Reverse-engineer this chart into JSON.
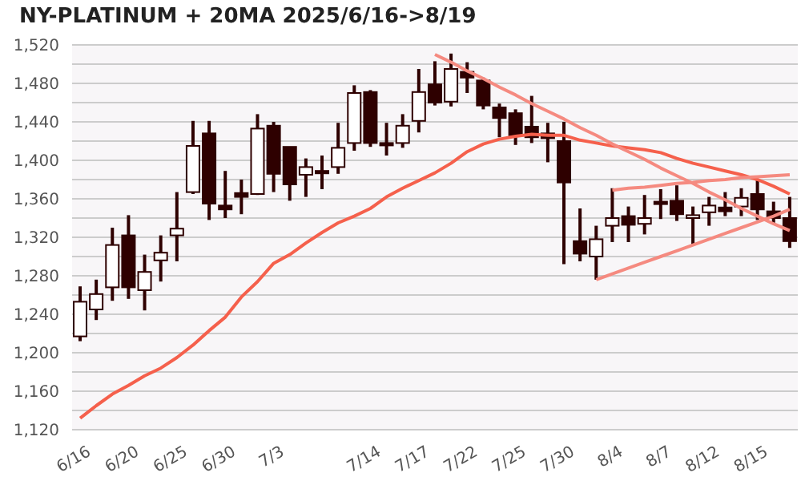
{
  "chart_data": {
    "type": "candlestick",
    "title": "NY-PLATINUM + 20MA 2025/6/16->8/19",
    "categories": [
      "6/16",
      null,
      null,
      "6/20",
      null,
      null,
      "6/25",
      null,
      null,
      "6/30",
      null,
      null,
      "7/3",
      null,
      null,
      null,
      null,
      null,
      "7/14",
      null,
      null,
      "7/17",
      null,
      null,
      "7/22",
      null,
      null,
      "7/25",
      null,
      null,
      "7/30",
      null,
      null,
      "8/4",
      null,
      null,
      "8/7",
      null,
      null,
      "8/12",
      null,
      null,
      "8/15",
      null,
      null
    ],
    "ohlc": [
      [
        1217,
        1269,
        1212,
        1253
      ],
      [
        1245,
        1276,
        1234,
        1261
      ],
      [
        1268,
        1330,
        1254,
        1312
      ],
      [
        1322,
        1343,
        1256,
        1268
      ],
      [
        1265,
        1302,
        1244,
        1284
      ],
      [
        1296,
        1322,
        1274,
        1304
      ],
      [
        1322,
        1367,
        1295,
        1329
      ],
      [
        1367,
        1441,
        1365,
        1415
      ],
      [
        1428,
        1441,
        1338,
        1355
      ],
      [
        1353,
        1389,
        1340,
        1349
      ],
      [
        1366,
        1380,
        1344,
        1362
      ],
      [
        1365,
        1448,
        1364,
        1433
      ],
      [
        1436,
        1440,
        1367,
        1386
      ],
      [
        1414,
        1414,
        1358,
        1375
      ],
      [
        1385,
        1402,
        1362,
        1393
      ],
      [
        1389,
        1405,
        1370,
        1388
      ],
      [
        1393,
        1439,
        1386,
        1413
      ],
      [
        1418,
        1478,
        1410,
        1470
      ],
      [
        1471,
        1473,
        1414,
        1418
      ],
      [
        1418,
        1439,
        1405,
        1416
      ],
      [
        1418,
        1448,
        1413,
        1436
      ],
      [
        1441,
        1495,
        1429,
        1471
      ],
      [
        1479,
        1503,
        1457,
        1460
      ],
      [
        1461,
        1511,
        1456,
        1495
      ],
      [
        1492,
        1502,
        1470,
        1486
      ],
      [
        1483,
        1486,
        1453,
        1457
      ],
      [
        1455,
        1459,
        1424,
        1444
      ],
      [
        1449,
        1453,
        1416,
        1426
      ],
      [
        1435,
        1467,
        1418,
        1424
      ],
      [
        1428,
        1439,
        1398,
        1423
      ],
      [
        1420,
        1440,
        1292,
        1377
      ],
      [
        1316,
        1350,
        1295,
        1303
      ],
      [
        1300,
        1332,
        1276,
        1318
      ],
      [
        1332,
        1371,
        1315,
        1340
      ],
      [
        1342,
        1352,
        1315,
        1333
      ],
      [
        1334,
        1364,
        1323,
        1340
      ],
      [
        1357,
        1370,
        1339,
        1355
      ],
      [
        1358,
        1374,
        1337,
        1344
      ],
      [
        1340,
        1352,
        1312,
        1343
      ],
      [
        1346,
        1362,
        1332,
        1353
      ],
      [
        1351,
        1367,
        1342,
        1347
      ],
      [
        1352,
        1371,
        1342,
        1361
      ],
      [
        1365,
        1381,
        1338,
        1349
      ],
      [
        1347,
        1357,
        1335,
        1340
      ],
      [
        1340,
        1362,
        1309,
        1316
      ]
    ],
    "color": "#2e0000",
    "colors": [
      "#ffffff",
      "#ffffff",
      "#ffffff",
      "#2e0000",
      "#ffffff",
      "#ffffff",
      "#ffffff",
      "#ffffff",
      "#2e0000",
      "#2e0000",
      "#2e0000",
      "#ffffff",
      "#2e0000",
      "#2e0000",
      "#ffffff",
      "#2e0000",
      "#ffffff",
      "#ffffff",
      "#2e0000",
      "#2e0000",
      "#ffffff",
      "#ffffff",
      "#2e0000",
      "#ffffff",
      "#2e0000",
      "#2e0000",
      "#2e0000",
      "#2e0000",
      "#2e0000",
      "#2e0000",
      "#2e0000",
      "#2e0000",
      "#ffffff",
      "#ffffff",
      "#2e0000",
      "#ffffff",
      "#2e0000",
      "#2e0000",
      "#ffffff",
      "#ffffff",
      "#2e0000",
      "#ffffff",
      "#2e0000",
      "#2e0000",
      "#2e0000"
    ],
    "series": [
      {
        "type": "line",
        "color": "#f5604c",
        "values": [
          1132,
          1145,
          1157,
          1166,
          1176,
          1184,
          1195,
          1208,
          1223,
          1237,
          1258,
          1274,
          1293,
          1302,
          1314,
          1325,
          1335,
          1342,
          1350,
          1362,
          1371,
          1379,
          1387,
          1397,
          1409,
          1417,
          1422,
          1425,
          1427,
          1426,
          1426,
          1421,
          1418,
          1415,
          1413,
          1411,
          1408,
          1402,
          1397,
          1393,
          1389,
          1385,
          1380,
          1373,
          1365
        ]
      },
      {
        "type": "line",
        "color": "#f58a80",
        "values": [
          null,
          null,
          null,
          null,
          null,
          null,
          null,
          null,
          null,
          null,
          null,
          null,
          null,
          null,
          null,
          null,
          null,
          null,
          null,
          null,
          null,
          null,
          1510,
          1502,
          1493,
          1485,
          1476,
          1468,
          1459,
          1451,
          1443,
          1434,
          1426,
          1417,
          1409,
          1401,
          1392,
          1384,
          1376,
          1367,
          1359,
          1350,
          1342,
          1334,
          1327
        ]
      },
      {
        "type": "line",
        "color": "#f58a80",
        "values": [
          null,
          null,
          null,
          null,
          null,
          null,
          null,
          null,
          null,
          null,
          null,
          null,
          null,
          null,
          null,
          null,
          null,
          null,
          null,
          null,
          null,
          null,
          null,
          null,
          null,
          null,
          null,
          null,
          null,
          null,
          null,
          null,
          null,
          1369,
          1371,
          1372,
          1374,
          1376,
          1377,
          1379,
          1380,
          1382,
          1383,
          1384,
          1385
        ]
      },
      {
        "type": "line",
        "color": "#f58a80",
        "values": [
          null,
          null,
          null,
          null,
          null,
          null,
          null,
          null,
          null,
          null,
          null,
          null,
          null,
          null,
          null,
          null,
          null,
          null,
          null,
          null,
          null,
          null,
          null,
          null,
          null,
          null,
          null,
          null,
          null,
          null,
          null,
          null,
          1276,
          1282,
          1288,
          1294,
          1300,
          1306,
          1312,
          1318,
          1324,
          1330,
          1336,
          1342,
          1349
        ]
      }
    ],
    "ylim": [
      1120,
      1520
    ],
    "yticks": [
      {
        "value": 1120,
        "label": "1,120"
      },
      {
        "value": 1140,
        "label": null
      },
      {
        "value": 1160,
        "label": "1,160"
      },
      {
        "value": 1180,
        "label": null
      },
      {
        "value": 1200,
        "label": "1,200"
      },
      {
        "value": 1220,
        "label": null
      },
      {
        "value": 1240,
        "label": "1,240"
      },
      {
        "value": 1260,
        "label": null
      },
      {
        "value": 1280,
        "label": "1,280"
      },
      {
        "value": 1300,
        "label": null
      },
      {
        "value": 1320,
        "label": "1,320"
      },
      {
        "value": 1340,
        "label": null
      },
      {
        "value": 1360,
        "label": "1,360"
      },
      {
        "value": 1380,
        "label": null
      },
      {
        "value": 1400,
        "label": "1,400"
      },
      {
        "value": 1420,
        "label": null
      },
      {
        "value": 1440,
        "label": "1,440"
      },
      {
        "value": 1460,
        "label": null
      },
      {
        "value": 1480,
        "label": "1,480"
      },
      {
        "value": 1500,
        "label": null
      },
      {
        "value": 1520,
        "label": "1,520"
      }
    ],
    "grid": "y"
  }
}
